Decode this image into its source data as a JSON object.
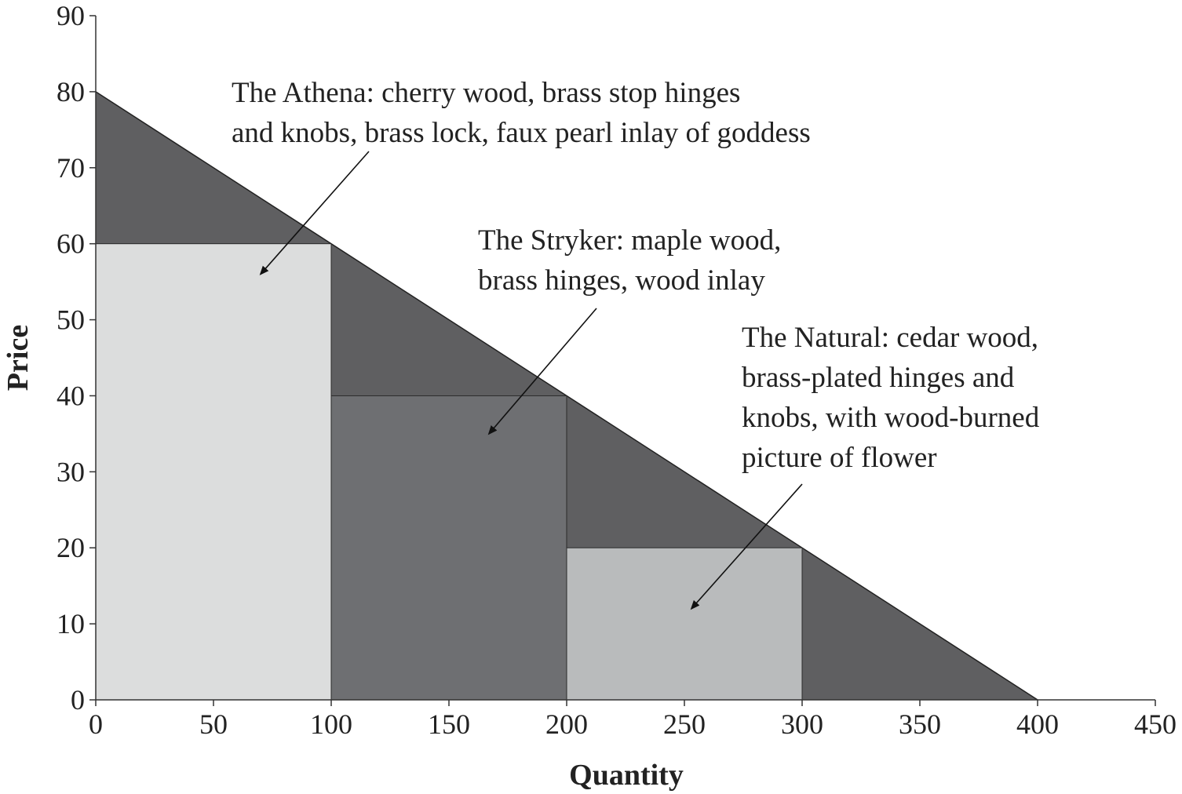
{
  "chart_data": {
    "type": "area",
    "title": "",
    "xlabel": "Quantity",
    "ylabel": "Price",
    "xlim": [
      0,
      450
    ],
    "ylim": [
      0,
      90
    ],
    "x_ticks": [
      0,
      50,
      100,
      150,
      200,
      250,
      300,
      350,
      400,
      450
    ],
    "y_ticks": [
      0,
      10,
      20,
      30,
      40,
      50,
      60,
      70,
      80,
      90
    ],
    "grid": false,
    "demand_curve": {
      "points": [
        {
          "x": 0,
          "y": 80
        },
        {
          "x": 400,
          "y": 0
        }
      ],
      "fill_color": "#5f5f61"
    },
    "price_blocks": [
      {
        "x_start": 0,
        "x_end": 100,
        "price": 60,
        "color": "#dcdddd"
      },
      {
        "x_start": 100,
        "x_end": 200,
        "price": 40,
        "color": "#6e6f72"
      },
      {
        "x_start": 200,
        "x_end": 300,
        "price": 20,
        "color": "#b9bbbc"
      }
    ],
    "annotations": [
      {
        "lines": [
          "The Athena: cherry wood, brass stop hinges",
          "and knobs, brass lock, faux pearl inlay of goddess"
        ],
        "arrow_target": {
          "x": 70,
          "y": 56
        }
      },
      {
        "lines": [
          "The Stryker: maple wood,",
          "brass hinges, wood inlay"
        ],
        "arrow_target": {
          "x": 167,
          "y": 35
        }
      },
      {
        "lines": [
          "The Natural: cedar wood,",
          "brass-plated hinges and",
          "knobs, with wood-burned",
          "picture of flower"
        ],
        "arrow_target": {
          "x": 253,
          "y": 12
        }
      }
    ]
  }
}
